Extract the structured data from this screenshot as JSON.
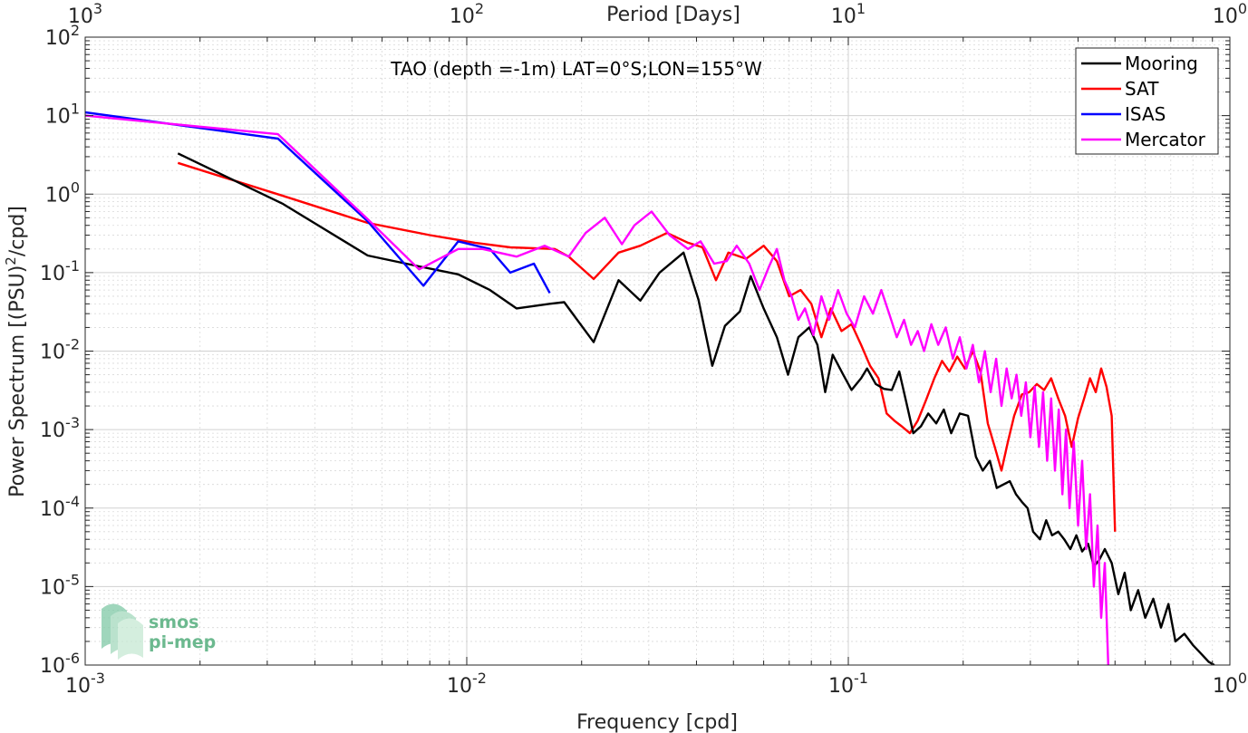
{
  "chart_data": {
    "type": "line",
    "title": "TAO (depth =-1m) LAT=0°S;LON=155°W",
    "xlabel": "Frequency [cpd]",
    "ylabel": "Power Spectrum [(PSU)",
    "ylabel_sup": "2",
    "ylabel_tail": "/cpd]",
    "x_scale": "log",
    "y_scale": "log",
    "xlim": [
      0.001,
      1
    ],
    "ylim": [
      1e-06,
      100
    ],
    "grid": true,
    "legend_position": "top-right",
    "x_ticks": [
      {
        "base": "10",
        "exp": "-3"
      },
      {
        "base": "10",
        "exp": "-2"
      },
      {
        "base": "10",
        "exp": "-1"
      },
      {
        "base": "10",
        "exp": "0"
      }
    ],
    "y_ticks": [
      {
        "base": "10",
        "exp": "-6"
      },
      {
        "base": "10",
        "exp": "-5"
      },
      {
        "base": "10",
        "exp": "-4"
      },
      {
        "base": "10",
        "exp": "-3"
      },
      {
        "base": "10",
        "exp": "-2"
      },
      {
        "base": "10",
        "exp": "-1"
      },
      {
        "base": "10",
        "exp": "0"
      },
      {
        "base": "10",
        "exp": "1"
      },
      {
        "base": "10",
        "exp": "2"
      }
    ],
    "top_axis": {
      "label": "Period [Days]",
      "ticks": [
        {
          "base": "10",
          "exp": "3"
        },
        {
          "base": "10",
          "exp": "2"
        },
        {
          "base": "10",
          "exp": "1"
        },
        {
          "base": "10",
          "exp": "0"
        }
      ]
    },
    "series": [
      {
        "name": "Mooring",
        "color": "#000000",
        "points": [
          [
            0.00175,
            3.3
          ],
          [
            0.0033,
            0.75
          ],
          [
            0.0055,
            0.165
          ],
          [
            0.0075,
            0.12
          ],
          [
            0.0095,
            0.095
          ],
          [
            0.0115,
            0.06
          ],
          [
            0.0135,
            0.035
          ],
          [
            0.0165,
            0.04
          ],
          [
            0.018,
            0.042
          ],
          [
            0.0215,
            0.013
          ],
          [
            0.025,
            0.08
          ],
          [
            0.0285,
            0.044
          ],
          [
            0.032,
            0.1
          ],
          [
            0.037,
            0.18
          ],
          [
            0.0405,
            0.045
          ],
          [
            0.044,
            0.0065
          ],
          [
            0.0475,
            0.021
          ],
          [
            0.052,
            0.032
          ],
          [
            0.0555,
            0.09
          ],
          [
            0.06,
            0.035
          ],
          [
            0.065,
            0.015
          ],
          [
            0.0695,
            0.005
          ],
          [
            0.074,
            0.015
          ],
          [
            0.079,
            0.02
          ],
          [
            0.083,
            0.012
          ],
          [
            0.087,
            0.003
          ],
          [
            0.091,
            0.009
          ],
          [
            0.097,
            0.005
          ],
          [
            0.102,
            0.0032
          ],
          [
            0.108,
            0.0045
          ],
          [
            0.112,
            0.006
          ],
          [
            0.118,
            0.0038
          ],
          [
            0.124,
            0.0033
          ],
          [
            0.13,
            0.0032
          ],
          [
            0.136,
            0.0055
          ],
          [
            0.142,
            0.0022
          ],
          [
            0.148,
            0.0009
          ],
          [
            0.155,
            0.0011
          ],
          [
            0.162,
            0.0016
          ],
          [
            0.17,
            0.0012
          ],
          [
            0.178,
            0.0018
          ],
          [
            0.186,
            0.0009
          ],
          [
            0.196,
            0.0016
          ],
          [
            0.206,
            0.0015
          ],
          [
            0.216,
            0.00045
          ],
          [
            0.225,
            0.0003
          ],
          [
            0.235,
            0.0004
          ],
          [
            0.245,
            0.00018
          ],
          [
            0.255,
            0.0002
          ],
          [
            0.265,
            0.00022
          ],
          [
            0.275,
            0.00015
          ],
          [
            0.285,
            0.00012
          ],
          [
            0.295,
            0.0001
          ],
          [
            0.305,
            5e-05
          ],
          [
            0.318,
            4e-05
          ],
          [
            0.33,
            7e-05
          ],
          [
            0.342,
            4.5e-05
          ],
          [
            0.355,
            5e-05
          ],
          [
            0.368,
            4e-05
          ],
          [
            0.382,
            3e-05
          ],
          [
            0.396,
            4.5e-05
          ],
          [
            0.41,
            2.8e-05
          ],
          [
            0.425,
            3.5e-05
          ],
          [
            0.44,
            1.8e-05
          ],
          [
            0.455,
            2.2e-05
          ],
          [
            0.47,
            3e-05
          ],
          [
            0.49,
            2e-05
          ],
          [
            0.51,
            8e-06
          ],
          [
            0.53,
            1.5e-05
          ],
          [
            0.55,
            5e-06
          ],
          [
            0.575,
            9e-06
          ],
          [
            0.6,
            4e-06
          ],
          [
            0.63,
            7e-06
          ],
          [
            0.66,
            3e-06
          ],
          [
            0.69,
            6e-06
          ],
          [
            0.72,
            2e-06
          ],
          [
            0.76,
            2.5e-06
          ],
          [
            0.8,
            1.8e-06
          ],
          [
            0.84,
            1.4e-06
          ],
          [
            0.88,
            1.1e-06
          ],
          [
            0.91,
            1e-06
          ]
        ]
      },
      {
        "name": "SAT",
        "color": "#ff0000",
        "points": [
          [
            0.00175,
            2.5
          ],
          [
            0.0033,
            0.95
          ],
          [
            0.0055,
            0.43
          ],
          [
            0.008,
            0.3
          ],
          [
            0.0105,
            0.24
          ],
          [
            0.013,
            0.21
          ],
          [
            0.017,
            0.2
          ],
          [
            0.0185,
            0.16
          ],
          [
            0.0215,
            0.083
          ],
          [
            0.025,
            0.18
          ],
          [
            0.0285,
            0.22
          ],
          [
            0.0335,
            0.32
          ],
          [
            0.038,
            0.24
          ],
          [
            0.0415,
            0.21
          ],
          [
            0.045,
            0.08
          ],
          [
            0.0485,
            0.18
          ],
          [
            0.054,
            0.15
          ],
          [
            0.06,
            0.22
          ],
          [
            0.065,
            0.14
          ],
          [
            0.07,
            0.05
          ],
          [
            0.075,
            0.06
          ],
          [
            0.08,
            0.04
          ],
          [
            0.085,
            0.015
          ],
          [
            0.09,
            0.035
          ],
          [
            0.096,
            0.018
          ],
          [
            0.102,
            0.022
          ],
          [
            0.108,
            0.012
          ],
          [
            0.114,
            0.0065
          ],
          [
            0.12,
            0.0045
          ],
          [
            0.126,
            0.0016
          ],
          [
            0.132,
            0.0013
          ],
          [
            0.138,
            0.0011
          ],
          [
            0.145,
            0.0009
          ],
          [
            0.152,
            0.0013
          ],
          [
            0.16,
            0.0024
          ],
          [
            0.168,
            0.0045
          ],
          [
            0.176,
            0.0075
          ],
          [
            0.184,
            0.0055
          ],
          [
            0.193,
            0.0085
          ],
          [
            0.202,
            0.006
          ],
          [
            0.212,
            0.01
          ],
          [
            0.222,
            0.0055
          ],
          [
            0.232,
            0.0012
          ],
          [
            0.242,
            0.0006
          ],
          [
            0.252,
            0.0003
          ],
          [
            0.262,
            0.0007
          ],
          [
            0.272,
            0.0015
          ],
          [
            0.285,
            0.0028
          ],
          [
            0.298,
            0.003
          ],
          [
            0.312,
            0.0038
          ],
          [
            0.326,
            0.0032
          ],
          [
            0.34,
            0.0045
          ],
          [
            0.355,
            0.0025
          ],
          [
            0.37,
            0.0015
          ],
          [
            0.385,
            0.0006
          ],
          [
            0.4,
            0.0014
          ],
          [
            0.415,
            0.0025
          ],
          [
            0.43,
            0.0045
          ],
          [
            0.445,
            0.003
          ],
          [
            0.46,
            0.006
          ],
          [
            0.475,
            0.0035
          ],
          [
            0.49,
            0.0015
          ],
          [
            0.5,
            5e-05
          ]
        ]
      },
      {
        "name": "ISAS",
        "color": "#0000ff",
        "points": [
          [
            0.001,
            11
          ],
          [
            0.0032,
            5.1
          ],
          [
            0.0055,
            0.45
          ],
          [
            0.0077,
            0.068
          ],
          [
            0.0095,
            0.25
          ],
          [
            0.0115,
            0.2
          ],
          [
            0.013,
            0.1
          ],
          [
            0.015,
            0.13
          ],
          [
            0.0165,
            0.055
          ]
        ]
      },
      {
        "name": "Mercator",
        "color": "#ff00ff",
        "points": [
          [
            0.001,
            10
          ],
          [
            0.0032,
            5.8
          ],
          [
            0.0055,
            0.48
          ],
          [
            0.0075,
            0.11
          ],
          [
            0.0095,
            0.2
          ],
          [
            0.011,
            0.2
          ],
          [
            0.0135,
            0.16
          ],
          [
            0.016,
            0.22
          ],
          [
            0.0185,
            0.16
          ],
          [
            0.0205,
            0.32
          ],
          [
            0.023,
            0.5
          ],
          [
            0.0255,
            0.23
          ],
          [
            0.0275,
            0.4
          ],
          [
            0.0305,
            0.6
          ],
          [
            0.034,
            0.3
          ],
          [
            0.038,
            0.2
          ],
          [
            0.041,
            0.25
          ],
          [
            0.0445,
            0.13
          ],
          [
            0.048,
            0.14
          ],
          [
            0.051,
            0.22
          ],
          [
            0.055,
            0.13
          ],
          [
            0.0585,
            0.06
          ],
          [
            0.062,
            0.12
          ],
          [
            0.065,
            0.2
          ],
          [
            0.068,
            0.08
          ],
          [
            0.071,
            0.05
          ],
          [
            0.074,
            0.025
          ],
          [
            0.077,
            0.035
          ],
          [
            0.081,
            0.016
          ],
          [
            0.085,
            0.05
          ],
          [
            0.089,
            0.025
          ],
          [
            0.094,
            0.06
          ],
          [
            0.099,
            0.03
          ],
          [
            0.104,
            0.02
          ],
          [
            0.11,
            0.05
          ],
          [
            0.116,
            0.03
          ],
          [
            0.122,
            0.06
          ],
          [
            0.128,
            0.03
          ],
          [
            0.134,
            0.015
          ],
          [
            0.14,
            0.025
          ],
          [
            0.146,
            0.012
          ],
          [
            0.152,
            0.018
          ],
          [
            0.158,
            0.01
          ],
          [
            0.165,
            0.022
          ],
          [
            0.172,
            0.012
          ],
          [
            0.18,
            0.02
          ],
          [
            0.188,
            0.008
          ],
          [
            0.196,
            0.015
          ],
          [
            0.204,
            0.006
          ],
          [
            0.212,
            0.012
          ],
          [
            0.22,
            0.004
          ],
          [
            0.228,
            0.01
          ],
          [
            0.236,
            0.003
          ],
          [
            0.244,
            0.008
          ],
          [
            0.252,
            0.002
          ],
          [
            0.26,
            0.006
          ],
          [
            0.268,
            0.0025
          ],
          [
            0.276,
            0.005
          ],
          [
            0.284,
            0.0015
          ],
          [
            0.292,
            0.004
          ],
          [
            0.3,
            0.0008
          ],
          [
            0.308,
            0.0035
          ],
          [
            0.316,
            0.0006
          ],
          [
            0.324,
            0.003
          ],
          [
            0.332,
            0.0004
          ],
          [
            0.34,
            0.0025
          ],
          [
            0.348,
            0.0003
          ],
          [
            0.356,
            0.0018
          ],
          [
            0.364,
            0.00015
          ],
          [
            0.372,
            0.001
          ],
          [
            0.38,
            0.0001
          ],
          [
            0.39,
            0.0007
          ],
          [
            0.4,
            6e-05
          ],
          [
            0.41,
            0.0004
          ],
          [
            0.42,
            3e-05
          ],
          [
            0.43,
            0.00015
          ],
          [
            0.44,
            1e-05
          ],
          [
            0.45,
            6e-05
          ],
          [
            0.46,
            4e-06
          ],
          [
            0.47,
            2e-05
          ],
          [
            0.48,
            1e-06
          ]
        ]
      }
    ]
  },
  "logo": {
    "line1": "smos",
    "line2": "pi-mep"
  }
}
